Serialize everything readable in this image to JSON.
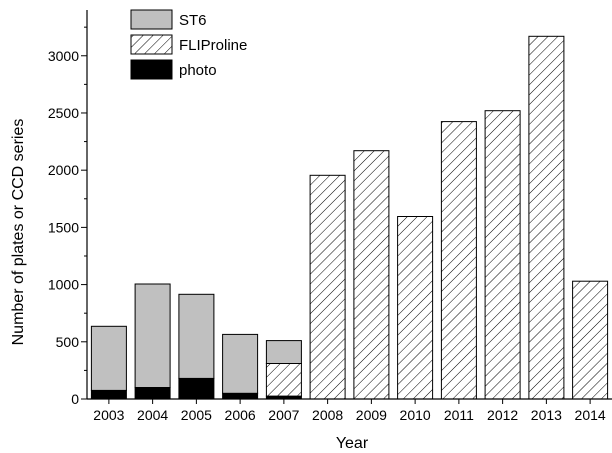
{
  "chart_data": {
    "type": "bar",
    "stacked": true,
    "title": "",
    "xlabel": "Year",
    "ylabel": "Number of plates or CCD series",
    "ylim": [
      0,
      3400
    ],
    "yticks": [
      0,
      500,
      1000,
      1500,
      2000,
      2500,
      3000
    ],
    "grid": false,
    "legend_position": "top-left",
    "categories": [
      "2003",
      "2004",
      "2005",
      "2006",
      "2007",
      "2008",
      "2009",
      "2010",
      "2011",
      "2012",
      "2013",
      "2014"
    ],
    "series": [
      {
        "name": "photo",
        "fill": "solid-black",
        "values": [
          75,
          100,
          180,
          50,
          25,
          0,
          0,
          0,
          0,
          0,
          0,
          0
        ]
      },
      {
        "name": "FLIProline",
        "fill": "diagonal-hatch",
        "values": [
          0,
          0,
          0,
          0,
          285,
          1955,
          2170,
          1595,
          2425,
          2520,
          3170,
          1030
        ]
      },
      {
        "name": "ST6",
        "fill": "solid-gray",
        "values": [
          560,
          905,
          735,
          515,
          200,
          0,
          0,
          0,
          0,
          0,
          0,
          0
        ]
      }
    ],
    "legend_order": [
      "ST6",
      "FLIProline",
      "photo"
    ],
    "colors": {
      "ST6": "#c0c0c0",
      "photo": "#000000",
      "FLIProline": "#ffffff",
      "outline": "#000000"
    }
  }
}
